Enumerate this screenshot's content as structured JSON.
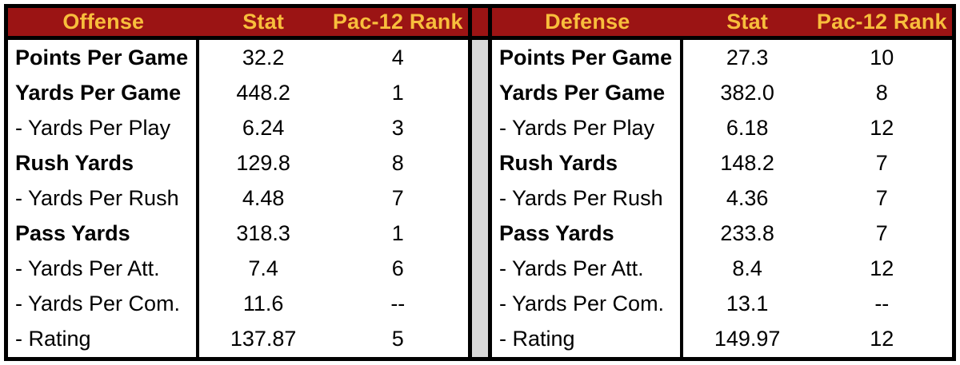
{
  "colors": {
    "cardinal": "#9b1414",
    "gold": "#f8be3c",
    "gray": "#d9d9d9",
    "ink": "#000000",
    "paper": "#ffffff"
  },
  "chart_data": [
    {
      "type": "table",
      "section": "Offense",
      "columns": [
        "Offense",
        "Stat",
        "Pac-12 Rank"
      ],
      "rows": [
        {
          "label": "Points Per Game",
          "stat": "32.2",
          "rank": "4",
          "bold": true
        },
        {
          "label": "Yards Per Game",
          "stat": "448.2",
          "rank": "1",
          "bold": true
        },
        {
          "label": "- Yards Per Play",
          "stat": "6.24",
          "rank": "3",
          "bold": false
        },
        {
          "label": "Rush Yards",
          "stat": "129.8",
          "rank": "8",
          "bold": true
        },
        {
          "label": "- Yards Per Rush",
          "stat": "4.48",
          "rank": "7",
          "bold": false
        },
        {
          "label": "Pass Yards",
          "stat": "318.3",
          "rank": "1",
          "bold": true
        },
        {
          "label": "- Yards Per Att.",
          "stat": "7.4",
          "rank": "6",
          "bold": false
        },
        {
          "label": "- Yards Per Com.",
          "stat": "11.6",
          "rank": "--",
          "bold": false
        },
        {
          "label": "- Rating",
          "stat": "137.87",
          "rank": "5",
          "bold": false
        }
      ]
    },
    {
      "type": "table",
      "section": "Defense",
      "columns": [
        "Defense",
        "Stat",
        "Pac-12 Rank"
      ],
      "rows": [
        {
          "label": "Points Per Game",
          "stat": "27.3",
          "rank": "10",
          "bold": true
        },
        {
          "label": "Yards Per Game",
          "stat": "382.0",
          "rank": "8",
          "bold": true
        },
        {
          "label": "- Yards Per Play",
          "stat": "6.18",
          "rank": "12",
          "bold": false
        },
        {
          "label": "Rush Yards",
          "stat": "148.2",
          "rank": "7",
          "bold": true
        },
        {
          "label": "- Yards Per Rush",
          "stat": "4.36",
          "rank": "7",
          "bold": false
        },
        {
          "label": "Pass Yards",
          "stat": "233.8",
          "rank": "7",
          "bold": true
        },
        {
          "label": "- Yards Per Att.",
          "stat": "8.4",
          "rank": "12",
          "bold": false
        },
        {
          "label": "- Yards Per Com.",
          "stat": "13.1",
          "rank": "--",
          "bold": false
        },
        {
          "label": "- Rating",
          "stat": "149.97",
          "rank": "12",
          "bold": false
        }
      ]
    }
  ]
}
